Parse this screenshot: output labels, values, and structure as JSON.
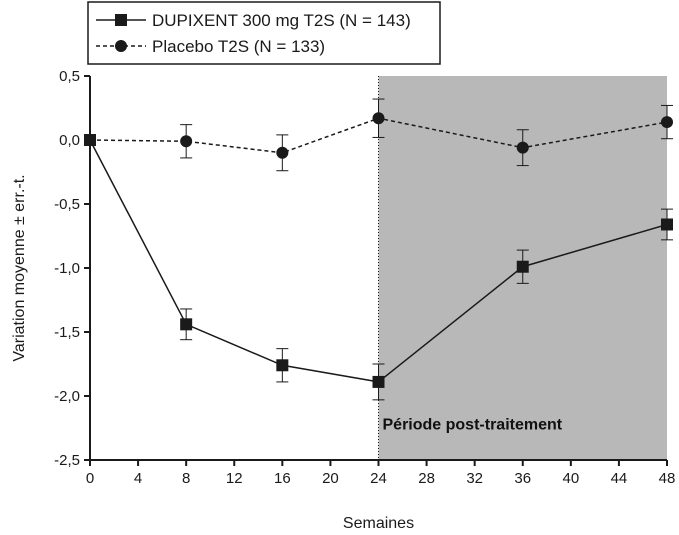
{
  "chart_data": {
    "type": "line",
    "x": [
      0,
      8,
      16,
      24,
      36,
      48
    ],
    "xlabel": "Semaines",
    "ylabel": "Variation moyenne ± err.-t.",
    "xlim": [
      0,
      48
    ],
    "ylim": [
      -2.5,
      0.5
    ],
    "xticks": [
      0,
      4,
      8,
      12,
      16,
      20,
      24,
      28,
      32,
      36,
      40,
      44,
      48
    ],
    "xtick_labels": [
      "0",
      "4",
      "8",
      "12",
      "16",
      "20",
      "24",
      "28",
      "32",
      "36",
      "40",
      "44",
      "48"
    ],
    "yticks": [
      0.5,
      0.0,
      -0.5,
      -1.0,
      -1.5,
      -2.0,
      -2.5
    ],
    "ytick_labels": [
      "0,5",
      "0,0",
      "-0,5",
      "-1,0",
      "-1,5",
      "-2,0",
      "-2,5"
    ],
    "series": [
      {
        "name": "DUPIXENT 300 mg T2S (N = 143)",
        "line_style": "solid",
        "marker": "square",
        "color": "#1a1a1a",
        "values": [
          0.0,
          -1.44,
          -1.76,
          -1.89,
          -0.99,
          -0.66
        ],
        "errors": [
          0.0,
          0.12,
          0.13,
          0.14,
          0.13,
          0.12
        ]
      },
      {
        "name": "Placebo T2S (N = 133)",
        "line_style": "dashed",
        "marker": "circle",
        "color": "#1a1a1a",
        "values": [
          0.0,
          -0.01,
          -0.1,
          0.17,
          -0.06,
          0.14
        ],
        "errors": [
          0.0,
          0.13,
          0.14,
          0.15,
          0.14,
          0.13
        ]
      }
    ],
    "shaded_region": {
      "x_start": 24,
      "x_end": 48,
      "label": "Période post-traitement",
      "color": "#b8b8b8"
    },
    "legend_position": "top-left"
  }
}
